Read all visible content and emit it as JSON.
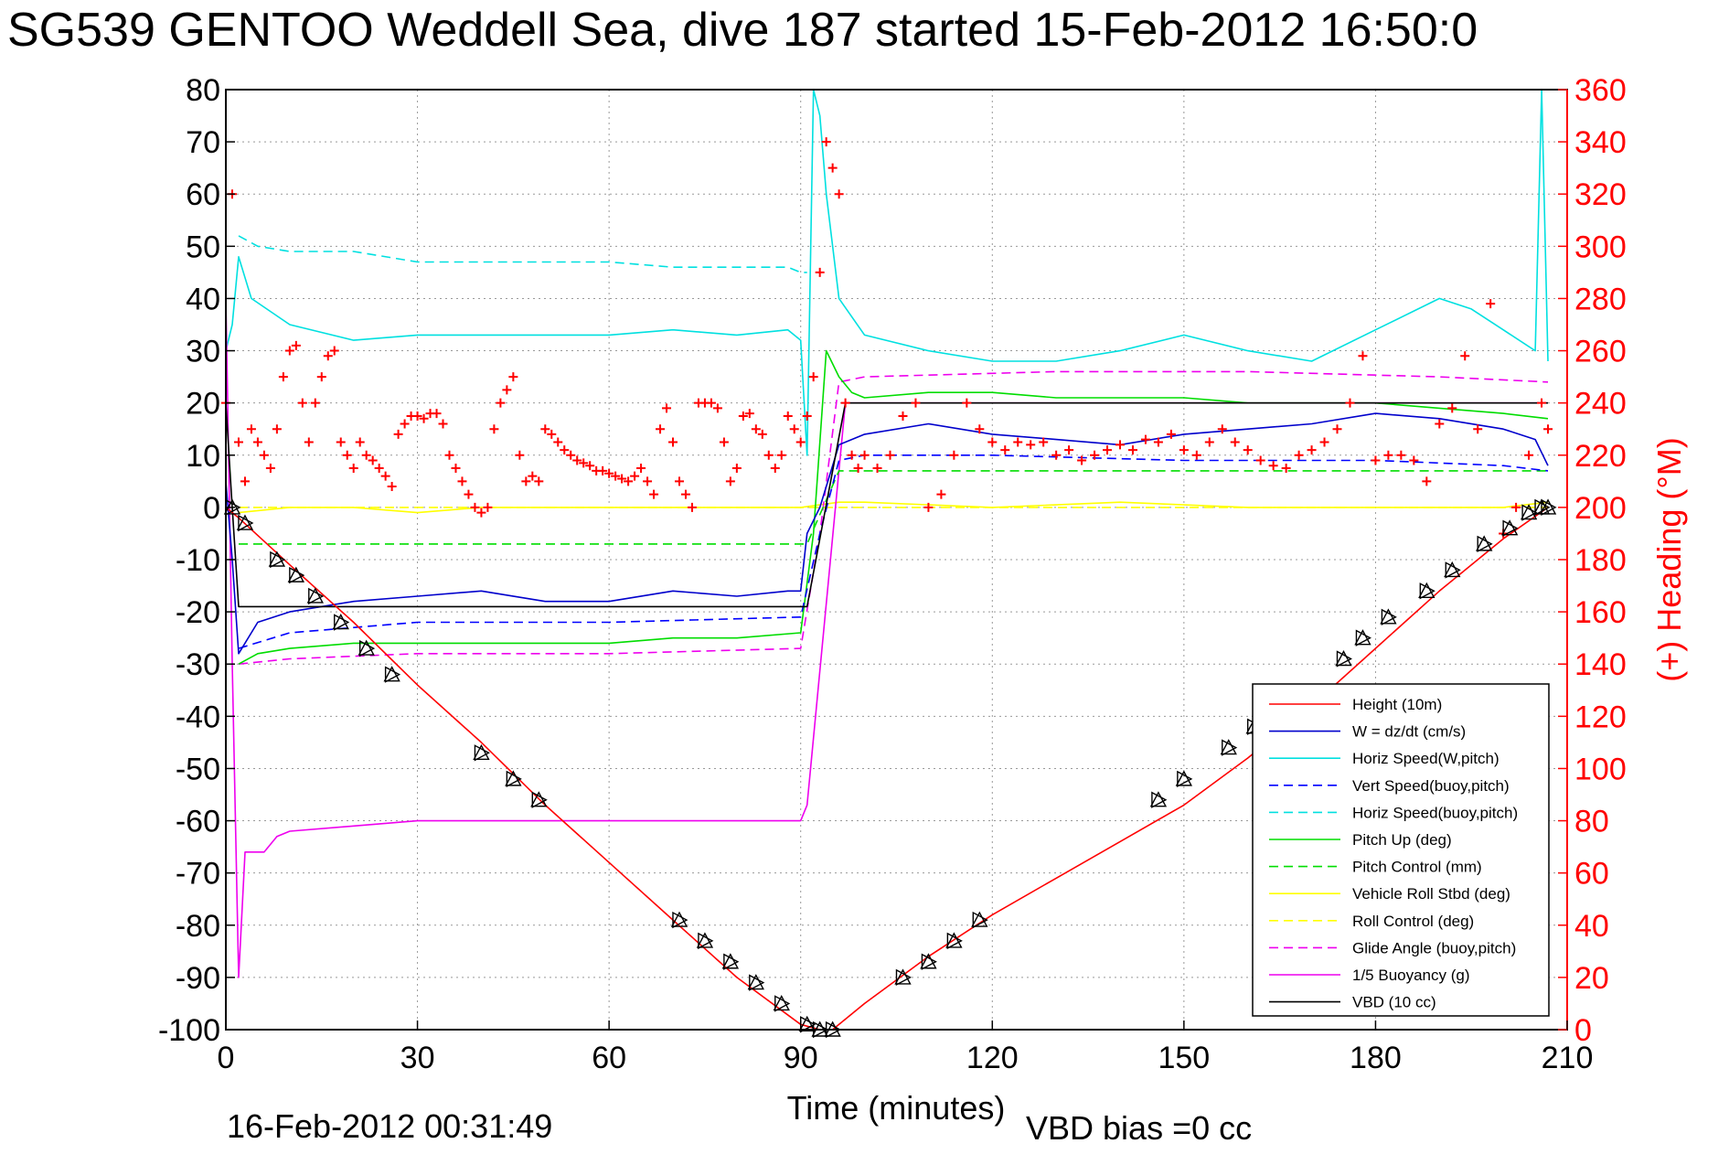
{
  "colors": {
    "height": "#ff0000",
    "w": "#0000cc",
    "horiz_speed": "#00e0e0",
    "vert_speed_buoy": "#0000ff",
    "horiz_speed_buoy": "#00e0e0",
    "pitch_up": "#00dd00",
    "pitch_control": "#00dd00",
    "vehicle_roll": "#ffff00",
    "roll_control": "#ffff00",
    "glide_angle": "#ee00ee",
    "buoyancy": "#ee00ee",
    "vbd": "#000000",
    "heading": "#ff0000",
    "grid": "#999999"
  },
  "chart_data": {
    "type": "line",
    "title": "SG539 GENTOO Weddell Sea, dive 187 started 15-Feb-2012 16:50:0",
    "xlabel": "Time (minutes)",
    "ylabel_right": "(+) Heading (°M)",
    "footer_date": "16-Feb-2012 00:31:49",
    "footer_vbd": "VBD bias =0 cc",
    "xlim": [
      0,
      210
    ],
    "ylim": [
      -100,
      80
    ],
    "ylim_right": [
      0,
      360
    ],
    "grid": true,
    "legend_position": "bottom-right",
    "x_ticks": [
      "0",
      "30",
      "60",
      "90",
      "120",
      "150",
      "180",
      "210"
    ],
    "y_ticks": [
      "80",
      "70",
      "60",
      "50",
      "40",
      "30",
      "20",
      "10",
      "0",
      "-10",
      "-20",
      "-30",
      "-40",
      "-50",
      "-60",
      "-70",
      "-80",
      "-90",
      "-100"
    ],
    "y_ticks_right": [
      "360",
      "340",
      "320",
      "300",
      "280",
      "260",
      "240",
      "220",
      "200",
      "180",
      "160",
      "140",
      "120",
      "100",
      "80",
      "60",
      "40",
      "20",
      "0"
    ],
    "series": [
      {
        "name": "Height (10m)",
        "style": "solid",
        "color_key": "height",
        "x": [
          0,
          2,
          10,
          20,
          30,
          40,
          50,
          60,
          70,
          80,
          90,
          93,
          95,
          100,
          110,
          120,
          130,
          140,
          150,
          160,
          170,
          180,
          190,
          200,
          207
        ],
        "y": [
          0,
          -2,
          -11,
          -22,
          -34,
          -45,
          -57,
          -68,
          -79,
          -90,
          -99,
          -100,
          -100,
          -95,
          -86,
          -78,
          -71,
          -64,
          -57,
          -48,
          -38,
          -27,
          -16,
          -6,
          0
        ]
      },
      {
        "name": "W = dz/dt (cm/s)",
        "style": "solid",
        "color_key": "w",
        "x": [
          0,
          1,
          2,
          5,
          10,
          20,
          30,
          40,
          50,
          60,
          70,
          80,
          88,
          90,
          91,
          93,
          96,
          100,
          110,
          120,
          130,
          140,
          150,
          160,
          170,
          180,
          190,
          200,
          205,
          207
        ],
        "y": [
          5,
          -10,
          -28,
          -22,
          -20,
          -18,
          -17,
          -16,
          -18,
          -18,
          -16,
          -17,
          -16,
          -16,
          -5,
          0,
          12,
          14,
          16,
          14,
          13,
          12,
          14,
          15,
          16,
          18,
          17,
          15,
          13,
          8
        ]
      },
      {
        "name": "Horiz Speed(W,pitch)",
        "style": "solid",
        "color_key": "horiz_speed",
        "x": [
          0,
          1,
          2,
          4,
          10,
          20,
          30,
          40,
          50,
          60,
          70,
          80,
          88,
          90,
          91,
          92,
          93,
          94,
          96,
          100,
          110,
          120,
          130,
          140,
          150,
          160,
          170,
          180,
          190,
          195,
          200,
          205,
          206,
          207
        ],
        "y": [
          30,
          35,
          48,
          40,
          35,
          32,
          33,
          33,
          33,
          33,
          34,
          33,
          34,
          32,
          10,
          80,
          75,
          60,
          40,
          33,
          30,
          28,
          28,
          30,
          33,
          30,
          28,
          34,
          40,
          38,
          34,
          30,
          80,
          28
        ]
      },
      {
        "name": "Vert Speed(buoy,pitch)",
        "style": "dashed",
        "color_key": "vert_speed_buoy",
        "x": [
          2,
          10,
          30,
          60,
          90,
          93,
          96,
          100,
          120,
          150,
          180,
          200,
          207
        ],
        "y": [
          -27,
          -24,
          -22,
          -22,
          -21,
          -5,
          9,
          10,
          10,
          9,
          9,
          8,
          7
        ]
      },
      {
        "name": "Horiz Speed(buoy,pitch)",
        "style": "dashed",
        "color_key": "horiz_speed_buoy",
        "x": [
          2,
          5,
          10,
          20,
          30,
          40,
          50,
          60,
          70,
          80,
          88,
          90,
          91
        ],
        "y": [
          52,
          50,
          49,
          49,
          47,
          47,
          47,
          47,
          46,
          46,
          46,
          45,
          45
        ]
      },
      {
        "name": "Pitch Up (deg)",
        "style": "solid",
        "color_key": "pitch_up",
        "x": [
          2,
          5,
          10,
          20,
          30,
          40,
          50,
          60,
          70,
          80,
          90,
          92,
          94,
          96,
          98,
          100,
          110,
          120,
          130,
          140,
          150,
          160,
          170,
          180,
          190,
          200,
          207
        ],
        "y": [
          -30,
          -28,
          -27,
          -26,
          -26,
          -26,
          -26,
          -26,
          -25,
          -25,
          -24,
          -5,
          30,
          25,
          22,
          21,
          22,
          22,
          21,
          21,
          21,
          20,
          20,
          20,
          19,
          18,
          17
        ]
      },
      {
        "name": "Pitch Control (mm)",
        "style": "dashed",
        "color_key": "pitch_control",
        "x": [
          2,
          10,
          30,
          60,
          90,
          91,
          96,
          100,
          130,
          160,
          190,
          207
        ],
        "y": [
          -7,
          -7,
          -7,
          -7,
          -7,
          -7,
          7,
          7,
          7,
          7,
          7,
          7
        ]
      },
      {
        "name": "Vehicle Roll Stbd (deg)",
        "style": "solid",
        "color_key": "vehicle_roll",
        "x": [
          2,
          10,
          20,
          30,
          40,
          50,
          60,
          70,
          80,
          90,
          96,
          100,
          120,
          140,
          160,
          180,
          200,
          207
        ],
        "y": [
          -1,
          0,
          0,
          -1,
          0,
          0,
          0,
          0,
          0,
          0,
          1,
          1,
          0,
          1,
          0,
          0,
          0,
          1
        ]
      },
      {
        "name": "Roll Control (deg)",
        "style": "dashed",
        "color_key": "roll_control",
        "x": [
          2,
          30,
          60,
          90,
          96,
          120,
          150,
          180,
          207
        ],
        "y": [
          0,
          0,
          0,
          0,
          0,
          0,
          0,
          0,
          0
        ]
      },
      {
        "name": "Glide Angle (buoy,pitch)",
        "style": "dashed",
        "color_key": "glide_angle",
        "x": [
          2,
          10,
          30,
          60,
          90,
          93,
          96,
          100,
          130,
          160,
          190,
          207
        ],
        "y": [
          -30,
          -29,
          -28,
          -28,
          -27,
          -5,
          24,
          25,
          26,
          26,
          25,
          24
        ]
      },
      {
        "name": "1/5 Buoyancy (g)",
        "style": "solid",
        "color_key": "buoyancy",
        "x": [
          0,
          1,
          2,
          3,
          6,
          8,
          10,
          20,
          30,
          60,
          90,
          91,
          97,
          100,
          130,
          160,
          190,
          207
        ],
        "y": [
          40,
          -30,
          -90,
          -66,
          -66,
          -63,
          -62,
          -61,
          -60,
          -60,
          -60,
          -57,
          20,
          20,
          20,
          20,
          20,
          20
        ]
      },
      {
        "name": "VBD (10 cc)",
        "style": "solid",
        "color_key": "vbd",
        "x": [
          0,
          1,
          2,
          30,
          60,
          90,
          91,
          97,
          100,
          130,
          160,
          190,
          207
        ],
        "y": [
          20,
          0,
          -19,
          -19,
          -19,
          -19,
          -19,
          20,
          20,
          20,
          20,
          20,
          20
        ]
      }
    ],
    "heading": {
      "name": "(+) Heading (°M)",
      "marker": "+",
      "x": [
        0,
        1,
        2,
        3,
        4,
        5,
        6,
        7,
        8,
        9,
        10,
        11,
        12,
        13,
        14,
        15,
        16,
        17,
        18,
        19,
        20,
        21,
        22,
        23,
        24,
        25,
        26,
        27,
        28,
        29,
        30,
        31,
        32,
        33,
        34,
        35,
        36,
        37,
        38,
        39,
        40,
        41,
        42,
        43,
        44,
        45,
        46,
        47,
        48,
        49,
        50,
        51,
        52,
        53,
        54,
        55,
        56,
        57,
        58,
        59,
        60,
        61,
        62,
        63,
        64,
        65,
        66,
        67,
        68,
        69,
        70,
        71,
        72,
        73,
        74,
        75,
        76,
        77,
        78,
        79,
        80,
        81,
        82,
        83,
        84,
        85,
        86,
        87,
        88,
        89,
        90,
        91,
        92,
        93,
        94,
        95,
        96,
        97,
        98,
        99,
        100,
        102,
        104,
        106,
        108,
        110,
        112,
        114,
        116,
        118,
        120,
        122,
        124,
        126,
        128,
        130,
        132,
        134,
        136,
        138,
        140,
        142,
        144,
        146,
        148,
        150,
        152,
        154,
        156,
        158,
        160,
        162,
        164,
        166,
        168,
        170,
        172,
        174,
        176,
        178,
        180,
        182,
        184,
        186,
        188,
        190,
        192,
        194,
        196,
        198,
        200,
        202,
        204,
        206,
        207
      ],
      "y": [
        240,
        320,
        225,
        210,
        230,
        225,
        220,
        215,
        230,
        250,
        260,
        262,
        240,
        225,
        240,
        250,
        258,
        260,
        225,
        220,
        215,
        225,
        220,
        218,
        215,
        212,
        208,
        228,
        232,
        235,
        235,
        234,
        236,
        236,
        232,
        220,
        215,
        210,
        205,
        200,
        198,
        200,
        230,
        240,
        245,
        250,
        220,
        210,
        212,
        210,
        230,
        228,
        225,
        222,
        220,
        218,
        217,
        216,
        214,
        214,
        213,
        212,
        211,
        210,
        212,
        215,
        210,
        205,
        230,
        238,
        225,
        210,
        205,
        200,
        240,
        240,
        240,
        238,
        225,
        210,
        215,
        235,
        236,
        230,
        228,
        220,
        215,
        220,
        235,
        230,
        225,
        235,
        250,
        290,
        340,
        330,
        320,
        240,
        220,
        215,
        220,
        215,
        220,
        235,
        240,
        200,
        205,
        220,
        240,
        230,
        225,
        222,
        225,
        224,
        225,
        220,
        222,
        218,
        220,
        222,
        224,
        222,
        226,
        225,
        228,
        222,
        220,
        225,
        230,
        225,
        222,
        218,
        216,
        215,
        220,
        222,
        225,
        230,
        240,
        258,
        218,
        220,
        220,
        218,
        210,
        232,
        238,
        258,
        230,
        278,
        190,
        200,
        220,
        240,
        230
      ]
    },
    "markers": {
      "name": "triangle markers on Height",
      "x": [
        1,
        3,
        8,
        11,
        14,
        18,
        22,
        26,
        40,
        45,
        49,
        71,
        75,
        79,
        83,
        87,
        91,
        93,
        95,
        106,
        110,
        114,
        118,
        146,
        150,
        157,
        161,
        175,
        178,
        182,
        188,
        192,
        197,
        201,
        204,
        206,
        207
      ],
      "y": [
        0,
        -3,
        -10,
        -13,
        -17,
        -22,
        -27,
        -32,
        -47,
        -52,
        -56,
        -79,
        -83,
        -87,
        -91,
        -95,
        -99,
        -100,
        -100,
        -90,
        -87,
        -83,
        -79,
        -56,
        -52,
        -46,
        -42,
        -29,
        -25,
        -21,
        -16,
        -12,
        -7,
        -4,
        -1,
        0,
        0
      ]
    }
  }
}
